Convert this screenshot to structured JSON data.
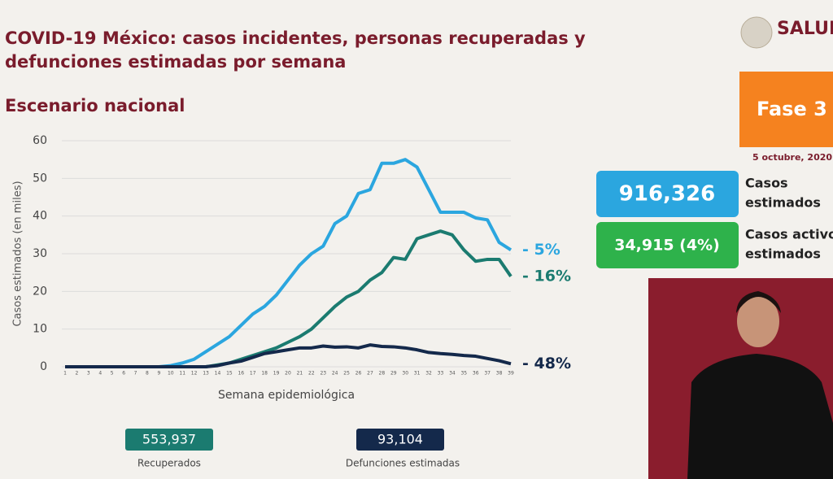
{
  "header": {
    "title_lines": [
      "COVID-19 México: casos incidentes, personas recuperadas y",
      "defunciones estimadas por semana"
    ],
    "logo": "SALUD",
    "phase": "Fase 3",
    "phase_color": "#f5821f",
    "date": "5 octubre, 2020"
  },
  "chart_data": {
    "type": "line",
    "subtitle": "Escenario nacional",
    "y_label": "Casos estimados (en miles)",
    "x_label": "Semana epidemiológica",
    "categories": [
      "1",
      "2",
      "3",
      "4",
      "5",
      "6",
      "7",
      "8",
      "9",
      "10",
      "11",
      "12",
      "13",
      "14",
      "15",
      "16",
      "17",
      "18",
      "19",
      "20",
      "21",
      "22",
      "23",
      "24",
      "25",
      "26",
      "27",
      "28",
      "29",
      "30",
      "31",
      "32",
      "33",
      "34",
      "35",
      "36",
      "37",
      "38",
      "39"
    ],
    "ylim": [
      0,
      60
    ],
    "yticks": [
      0,
      10,
      20,
      30,
      40,
      50,
      60
    ],
    "grid": true,
    "series": [
      {
        "color": "#2ba6df",
        "annotation": "- 5%",
        "values": [
          0,
          0,
          0,
          0,
          0,
          0,
          0,
          0,
          0,
          0.3,
          1,
          2,
          4,
          6,
          8,
          11,
          14,
          16,
          19,
          23,
          27,
          30,
          32,
          38,
          40,
          46,
          47,
          54,
          54,
          55,
          53,
          47,
          41,
          41,
          41,
          39.5,
          39,
          33,
          31
        ]
      },
      {
        "color": "#1b7b70",
        "annotation": "- 16%",
        "values": [
          0,
          0,
          0,
          0,
          0,
          0,
          0,
          0,
          0,
          0,
          0,
          0,
          0,
          0.5,
          1,
          2,
          3,
          4,
          5,
          6.5,
          8,
          10,
          13,
          16,
          18.5,
          20,
          23,
          25,
          29,
          28.5,
          34,
          35,
          36,
          35,
          31,
          28,
          28.5,
          28.5,
          24
        ]
      },
      {
        "color": "#14294b",
        "annotation": "- 48%",
        "values": [
          0,
          0,
          0,
          0,
          0,
          0,
          0,
          0,
          0,
          0,
          0,
          0,
          0,
          0.3,
          1,
          1.5,
          2.5,
          3.5,
          4,
          4.5,
          5,
          5,
          5.5,
          5.2,
          5.3,
          5,
          5.8,
          5.4,
          5.3,
          5,
          4.5,
          3.8,
          3.5,
          3.3,
          3,
          2.8,
          2.2,
          1.6,
          0.8
        ]
      }
    ]
  },
  "stats": [
    {
      "value": "916,326",
      "label": [
        "Casos",
        "estimados"
      ],
      "color": "#2ba6df"
    },
    {
      "value": "34,915 (4%)",
      "label": [
        "Casos activos",
        "estimados"
      ],
      "color": "#2eb24b"
    }
  ],
  "footer": [
    {
      "value": "553,937",
      "label": "Recuperados",
      "color": "#1b7b70"
    },
    {
      "value": "93,104",
      "label": "Defunciones estimadas",
      "color": "#14294b"
    }
  ]
}
